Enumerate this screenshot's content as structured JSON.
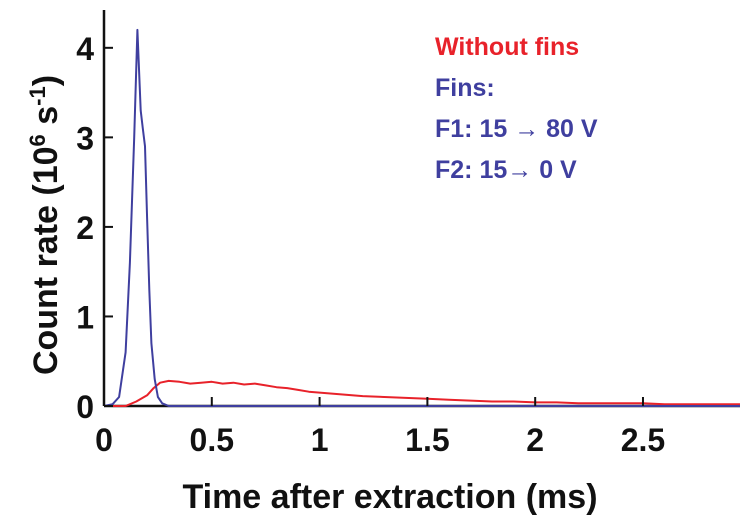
{
  "chart_data": {
    "type": "line",
    "xlabel": "Time after extraction (ms)",
    "ylabel_main": "Count rate (10",
    "ylabel_exp": "6",
    "ylabel_unit": " s",
    "ylabel_unit_exp": "-1",
    "ylabel_close": ")",
    "xlim": [
      0,
      2.95
    ],
    "ylim": [
      0,
      4.4
    ],
    "x_ticks": [
      0,
      0.5,
      1,
      1.5,
      2,
      2.5
    ],
    "x_tick_labels": [
      "0",
      "0.5",
      "1",
      "1.5",
      "2",
      "2.5"
    ],
    "y_ticks": [
      0,
      1,
      2,
      3,
      4
    ],
    "y_tick_labels": [
      "0",
      "1",
      "2",
      "3",
      "4"
    ],
    "grid": false,
    "legend_position": "top-right",
    "legend_lines": [
      {
        "text": "Without fins",
        "color": "#e8222a"
      },
      {
        "text": "Fins:",
        "color": "#3f3f9f"
      },
      {
        "text": "F1: 15 → 80 V",
        "color": "#3f3f9f"
      },
      {
        "text": "F2: 15→ 0 V",
        "color": "#3f3f9f"
      }
    ],
    "series": [
      {
        "name": "Without fins",
        "color": "#e8222a",
        "x": [
          0.0,
          0.1,
          0.15,
          0.2,
          0.23,
          0.26,
          0.3,
          0.35,
          0.4,
          0.45,
          0.5,
          0.55,
          0.6,
          0.65,
          0.7,
          0.75,
          0.8,
          0.85,
          0.9,
          0.95,
          1.0,
          1.1,
          1.2,
          1.3,
          1.4,
          1.5,
          1.6,
          1.7,
          1.8,
          1.9,
          2.0,
          2.1,
          2.2,
          2.3,
          2.4,
          2.5,
          2.6,
          2.7,
          2.8,
          2.95
        ],
        "y": [
          0.0,
          0.0,
          0.05,
          0.12,
          0.2,
          0.26,
          0.28,
          0.27,
          0.25,
          0.26,
          0.27,
          0.25,
          0.26,
          0.24,
          0.25,
          0.23,
          0.21,
          0.2,
          0.18,
          0.16,
          0.15,
          0.13,
          0.11,
          0.1,
          0.09,
          0.08,
          0.07,
          0.06,
          0.05,
          0.05,
          0.04,
          0.04,
          0.03,
          0.03,
          0.03,
          0.03,
          0.02,
          0.02,
          0.02,
          0.02
        ]
      },
      {
        "name": "Fins: F1: 15 → 80 V, F2: 15→ 0 V",
        "color": "#3f3f9f",
        "x": [
          0.0,
          0.04,
          0.07,
          0.1,
          0.12,
          0.14,
          0.155,
          0.17,
          0.18,
          0.19,
          0.2,
          0.21,
          0.22,
          0.235,
          0.25,
          0.27,
          0.3,
          0.4,
          1.0,
          2.0,
          2.95
        ],
        "y": [
          0.0,
          0.02,
          0.1,
          0.6,
          1.6,
          3.0,
          4.2,
          3.3,
          3.1,
          2.9,
          2.1,
          1.3,
          0.7,
          0.3,
          0.1,
          0.03,
          0.0,
          0.0,
          0.0,
          0.0,
          0.0
        ]
      }
    ]
  }
}
